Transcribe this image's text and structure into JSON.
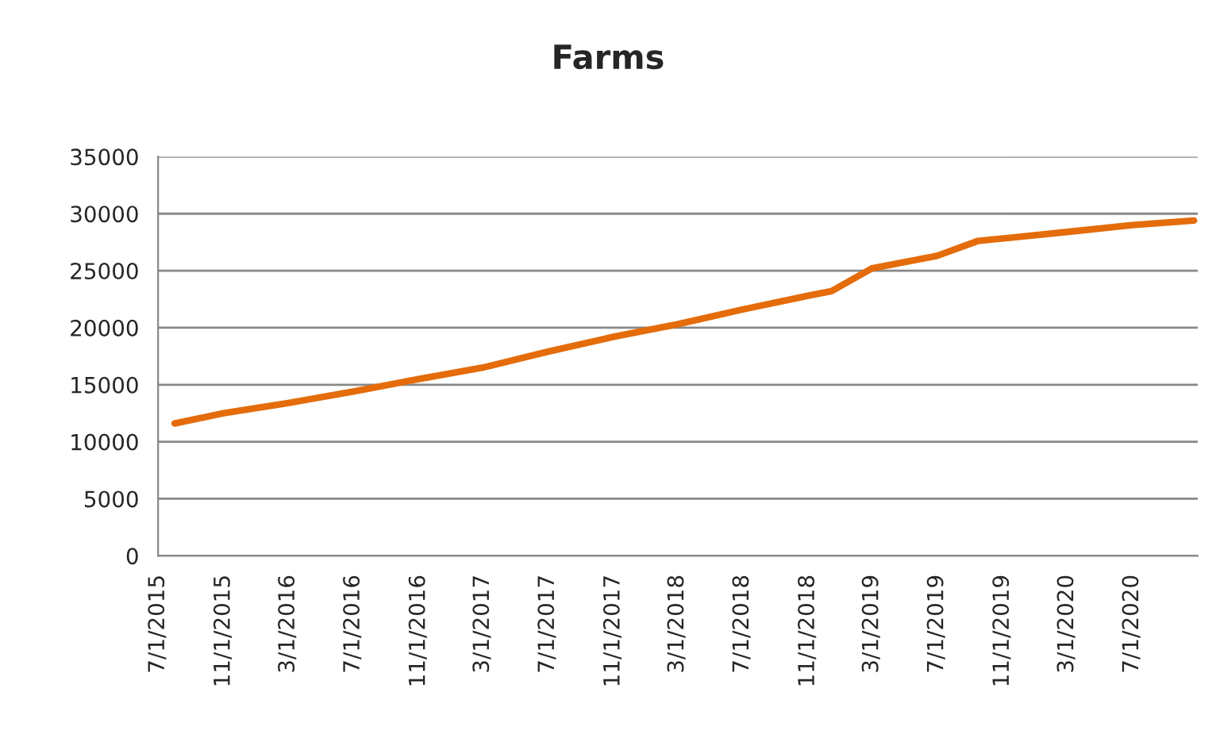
{
  "chart_data": {
    "type": "line",
    "title": "Farms",
    "x": [
      "2015-08-01",
      "2015-11-01",
      "2016-03-01",
      "2016-07-01",
      "2016-11-01",
      "2017-03-01",
      "2017-07-01",
      "2017-11-01",
      "2018-03-01",
      "2018-07-01",
      "2018-11-01",
      "2018-12-15",
      "2019-03-01",
      "2019-07-01",
      "2019-09-15",
      "2020-03-01",
      "2020-07-01",
      "2020-10-25"
    ],
    "series": [
      {
        "color": "#e46c0a",
        "values": [
          11600,
          12500,
          13400,
          14400,
          15500,
          16500,
          17900,
          19200,
          20300,
          21600,
          22800,
          23200,
          25200,
          26300,
          27600,
          28400,
          29000,
          29400
        ]
      }
    ],
    "ylim": [
      0,
      35000
    ],
    "yticks": [
      0,
      5000,
      10000,
      15000,
      20000,
      25000,
      30000,
      35000
    ],
    "xlim": [
      "2015-07-01",
      "2020-11-01"
    ],
    "xticks": [
      {
        "value": "2015-07-01",
        "label": "7/1/2015"
      },
      {
        "value": "2015-11-01",
        "label": "11/1/2015"
      },
      {
        "value": "2016-03-01",
        "label": "3/1/2016"
      },
      {
        "value": "2016-07-01",
        "label": "7/1/2016"
      },
      {
        "value": "2016-11-01",
        "label": "11/1/2016"
      },
      {
        "value": "2017-03-01",
        "label": "3/1/2017"
      },
      {
        "value": "2017-07-01",
        "label": "7/1/2017"
      },
      {
        "value": "2017-11-01",
        "label": "11/1/2017"
      },
      {
        "value": "2018-03-01",
        "label": "3/1/2018"
      },
      {
        "value": "2018-07-01",
        "label": "7/1/2018"
      },
      {
        "value": "2018-11-01",
        "label": "11/1/2018"
      },
      {
        "value": "2019-03-01",
        "label": "3/1/2019"
      },
      {
        "value": "2019-07-01",
        "label": "7/1/2019"
      },
      {
        "value": "2019-11-01",
        "label": "11/1/2019"
      },
      {
        "value": "2020-03-01",
        "label": "3/1/2020"
      },
      {
        "value": "2020-07-01",
        "label": "7/1/2020"
      }
    ],
    "grid": "y",
    "marker": "none",
    "line_style": "solid"
  }
}
